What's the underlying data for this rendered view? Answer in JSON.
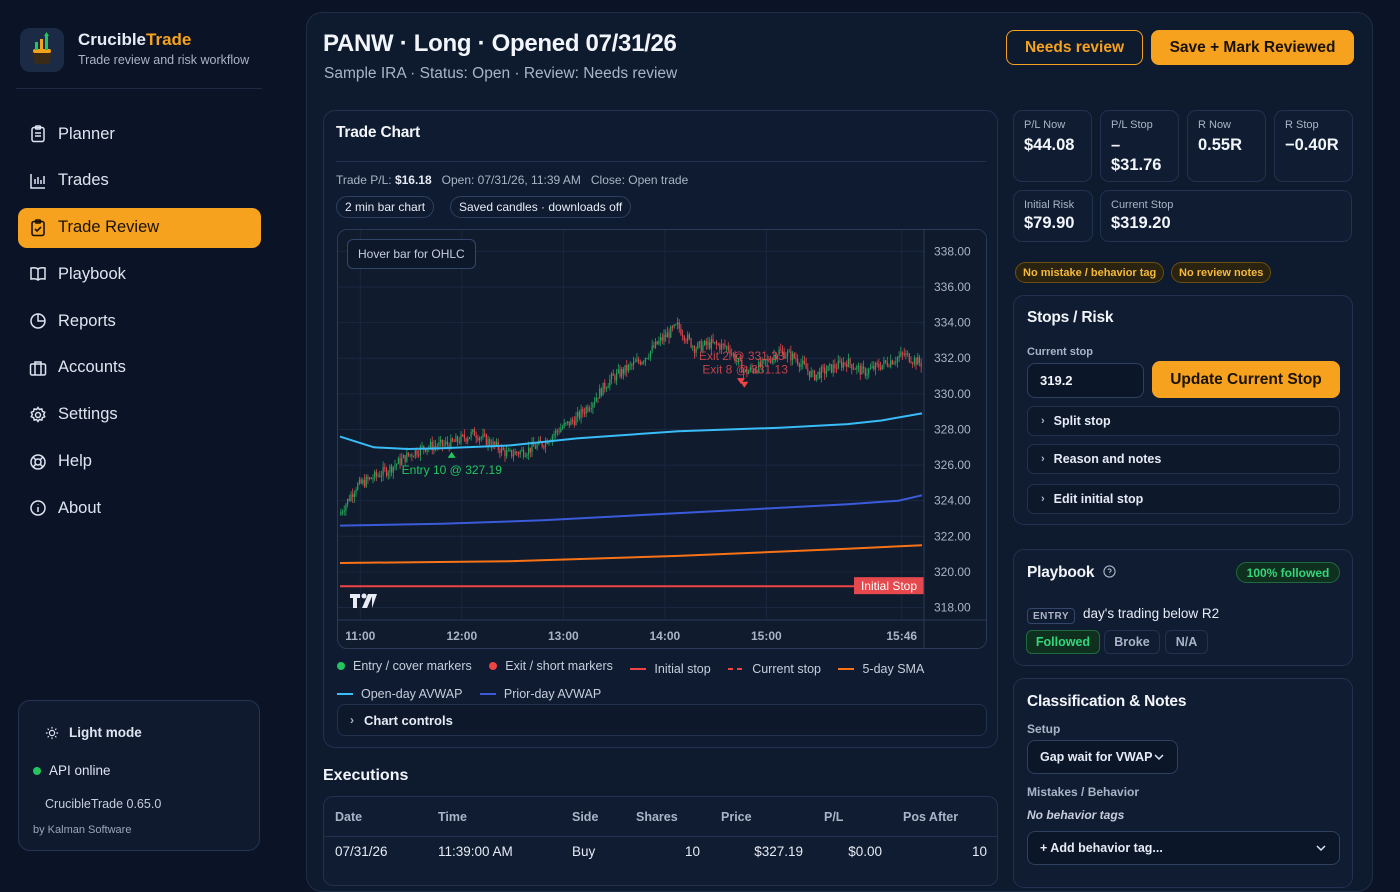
{
  "brand": {
    "name_part1": "Crucible",
    "name_part2": "Trade",
    "subtitle": "Trade review and risk workflow"
  },
  "nav": [
    {
      "label": "Planner",
      "icon": "clipboard-icon"
    },
    {
      "label": "Trades",
      "icon": "bar-chart-icon"
    },
    {
      "label": "Trade Review",
      "icon": "clipboard-check-icon",
      "active": true
    },
    {
      "label": "Playbook",
      "icon": "book-icon"
    },
    {
      "label": "Reports",
      "icon": "pie-chart-icon"
    },
    {
      "label": "Accounts",
      "icon": "briefcase-icon"
    },
    {
      "label": "Settings",
      "icon": "gear-icon"
    },
    {
      "label": "Help",
      "icon": "lifebuoy-icon"
    },
    {
      "label": "About",
      "icon": "info-icon"
    }
  ],
  "sidebar_footer": {
    "light_mode": "Light mode",
    "api_status": "API online",
    "version": "CrucibleTrade 0.65.0",
    "by": "by Kalman Software"
  },
  "header": {
    "title": "PANW · Long · Opened 07/31/26",
    "subtitle": "Sample IRA · Status: Open · Review: Needs review",
    "needs_review": "Needs review",
    "save_reviewed": "Save + Mark Reviewed"
  },
  "trade_chart": {
    "title": "Trade Chart",
    "pl_label": "Trade P/L:",
    "pl_value": "$16.18",
    "open_text": "Open: 07/31/26, 11:39 AM",
    "close_text": "Close: Open trade",
    "pill_bar": "2 min bar chart",
    "pill_saved": "Saved candles · downloads off",
    "hover_hint": "Hover bar for OHLC",
    "initial_stop_label": "Initial Stop",
    "initial_stop_price": "319.20",
    "entry_marker": "Entry 10 @ 327.19",
    "exit_marker_1": "Exit 2 @ 331.33",
    "exit_marker_2": "Exit 8 @ 331.13",
    "controls": "Chart controls",
    "legend": [
      {
        "label": "Entry / cover markers",
        "color": "#22c55e",
        "kind": "dot"
      },
      {
        "label": "Exit / short markers",
        "color": "#ef4444",
        "kind": "dot"
      },
      {
        "label": "Initial stop",
        "color": "#ef4444",
        "kind": "line"
      },
      {
        "label": "Current stop",
        "color": "#ef4444",
        "kind": "dash"
      },
      {
        "label": "5-day SMA",
        "color": "#f97316",
        "kind": "line"
      },
      {
        "label": "Open-day AVWAP",
        "color": "#38bdf8",
        "kind": "line"
      },
      {
        "label": "Prior-day AVWAP",
        "color": "#3b5bdb",
        "kind": "line"
      }
    ]
  },
  "chart_data": {
    "type": "line",
    "title": "",
    "x_ticks": [
      "11:00",
      "12:00",
      "13:00",
      "14:00",
      "15:00",
      "15:46"
    ],
    "y_ticks": [
      "338.00",
      "336.00",
      "334.00",
      "332.00",
      "330.00",
      "328.00",
      "326.00",
      "324.00",
      "322.00",
      "320.00",
      "318.00"
    ],
    "ylim": [
      317.3,
      339.2
    ],
    "series": [
      {
        "name": "Open-day AVWAP",
        "points": [
          [
            0,
            327.6
          ],
          [
            10,
            327.3
          ],
          [
            20,
            327.0
          ],
          [
            40,
            326.9
          ],
          [
            60,
            326.95
          ],
          [
            100,
            327.1
          ],
          [
            140,
            327.5
          ],
          [
            200,
            327.9
          ],
          [
            260,
            328.1
          ],
          [
            300,
            328.3
          ],
          [
            320,
            328.5
          ],
          [
            344,
            328.9
          ]
        ]
      },
      {
        "name": "Prior-day AVWAP",
        "points": [
          [
            0,
            322.6
          ],
          [
            60,
            322.7
          ],
          [
            120,
            322.9
          ],
          [
            180,
            323.2
          ],
          [
            240,
            323.5
          ],
          [
            300,
            323.8
          ],
          [
            330,
            324.0
          ],
          [
            344,
            324.3
          ]
        ]
      },
      {
        "name": "5-day SMA",
        "points": [
          [
            0,
            320.5
          ],
          [
            100,
            320.6
          ],
          [
            200,
            320.9
          ],
          [
            300,
            321.3
          ],
          [
            344,
            321.5
          ]
        ]
      },
      {
        "name": "Initial stop",
        "points": [
          [
            0,
            319.2
          ],
          [
            344,
            319.2
          ]
        ]
      }
    ],
    "markers": [
      {
        "type": "entry",
        "x": 66,
        "y": 327.19
      },
      {
        "type": "exit",
        "x": 237,
        "y": 331.33
      },
      {
        "type": "exit",
        "x": 239,
        "y": 331.13
      }
    ]
  },
  "stats": {
    "pl_now": {
      "label": "P/L Now",
      "value": "$44.08"
    },
    "pl_stop": {
      "label": "P/L Stop",
      "value": "–\n$31.76"
    },
    "r_now": {
      "label": "R Now",
      "value": "0.55R"
    },
    "r_stop": {
      "label": "R Stop",
      "value": "−0.40R"
    },
    "initial_risk": {
      "label": "Initial Risk",
      "value": "$79.90"
    },
    "current_stop": {
      "label": "Current Stop",
      "value": "$319.20"
    }
  },
  "warnings": [
    "No mistake / behavior tag",
    "No review notes"
  ],
  "stops_risk": {
    "title": "Stops / Risk",
    "current_stop_label": "Current stop",
    "current_stop_value": "319.2",
    "update_button": "Update Current Stop",
    "split_stop": "Split stop",
    "reason_notes": "Reason and notes",
    "edit_initial": "Edit initial stop"
  },
  "playbook": {
    "title": "Playbook",
    "followed_badge": "100% followed",
    "entry_tag": "ENTRY",
    "rule": "day's trading below R2",
    "options": [
      "Followed",
      "Broke",
      "N/A"
    ]
  },
  "classification": {
    "title": "Classification & Notes",
    "setup_label": "Setup",
    "setup_value": "Gap wait for VWAP",
    "mistakes_label": "Mistakes / Behavior",
    "no_behavior": "No behavior tags",
    "add_tag": "+ Add behavior tag..."
  },
  "executions": {
    "title": "Executions",
    "headers": [
      "Date",
      "Time",
      "Side",
      "Shares",
      "Price",
      "P/L",
      "Pos After"
    ],
    "rows": [
      [
        "07/31/26",
        "11:39:00 AM",
        "Buy",
        "10",
        "$327.19",
        "$0.00",
        "10"
      ]
    ]
  }
}
